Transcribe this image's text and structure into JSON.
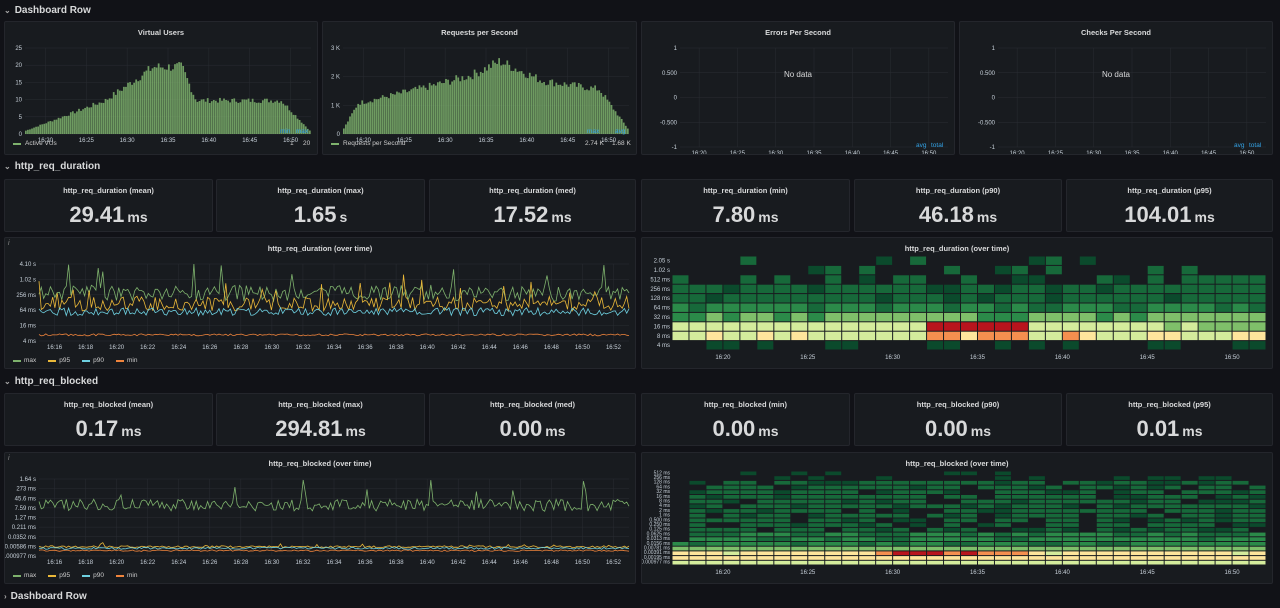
{
  "rows": {
    "dashboard_top": "Dashboard Row",
    "duration": "http_req_duration",
    "blocked": "http_req_blocked",
    "dashboard_bottom": "Dashboard Row"
  },
  "colors": {
    "green": "#7eb26d",
    "yellow": "#eab839",
    "cyan": "#6ed0e0",
    "orange": "#ef843c",
    "blue_header": "#33a2e5"
  },
  "time_ticks_top": [
    "16:20",
    "16:25",
    "16:30",
    "16:35",
    "16:40",
    "16:45",
    "16:50"
  ],
  "time_ticks_long": [
    "16:16",
    "16:18",
    "16:20",
    "16:22",
    "16:24",
    "16:26",
    "16:28",
    "16:30",
    "16:32",
    "16:34",
    "16:36",
    "16:38",
    "16:40",
    "16:42",
    "16:44",
    "16:46",
    "16:48",
    "16:50",
    "16:52"
  ],
  "heat_time_ticks": [
    "16:20",
    "16:25",
    "16:30",
    "16:35",
    "16:40",
    "16:45",
    "16:50"
  ],
  "vus": {
    "title": "Virtual Users",
    "y_ticks": [
      "25",
      "20",
      "15",
      "10",
      "5",
      "0"
    ],
    "legend_name": "Active VUs",
    "col_min": "min",
    "col_max": "max",
    "min": "1",
    "max": "20",
    "chart_data": {
      "type": "bar",
      "ylim": [
        0,
        25
      ],
      "profile": [
        [
          0,
          1
        ],
        [
          0.28,
          10
        ],
        [
          0.45,
          20
        ],
        [
          0.55,
          20
        ],
        [
          0.6,
          10
        ],
        [
          0.9,
          10
        ],
        [
          1,
          1
        ]
      ]
    }
  },
  "rps": {
    "title": "Requests per Second",
    "y_ticks": [
      "3 K",
      "2 K",
      "1 K",
      "0"
    ],
    "legend_name": "Requests per Second",
    "col_max": "max",
    "col_avg": "avg",
    "max": "2.74 K",
    "avg": "1.68 K",
    "chart_data": {
      "type": "bar",
      "ylim": [
        0,
        3000
      ],
      "profile": [
        [
          0,
          200
        ],
        [
          0.05,
          1100
        ],
        [
          0.3,
          1700
        ],
        [
          0.45,
          2100
        ],
        [
          0.55,
          2600
        ],
        [
          0.7,
          1900
        ],
        [
          0.9,
          1600
        ],
        [
          1,
          200
        ]
      ]
    }
  },
  "errors": {
    "title": "Errors Per Second",
    "nodata": "No data",
    "y_ticks": [
      "1",
      "0.500",
      "0",
      "-0.500",
      "-1"
    ],
    "col_avg": "avg",
    "col_total": "total"
  },
  "checks": {
    "title": "Checks Per Second",
    "nodata": "No data",
    "y_ticks": [
      "1",
      "0.500",
      "0",
      "-0.500",
      "-1"
    ],
    "col_avg": "avg",
    "col_total": "total"
  },
  "duration_stats": [
    {
      "title": "http_req_duration (mean)",
      "value": "29.41",
      "unit": "ms"
    },
    {
      "title": "http_req_duration (max)",
      "value": "1.65",
      "unit": "s"
    },
    {
      "title": "http_req_duration (med)",
      "value": "17.52",
      "unit": "ms"
    },
    {
      "title": "http_req_duration (min)",
      "value": "7.80",
      "unit": "ms"
    },
    {
      "title": "http_req_duration (p90)",
      "value": "46.18",
      "unit": "ms"
    },
    {
      "title": "http_req_duration (p95)",
      "value": "104.01",
      "unit": "ms"
    }
  ],
  "duration_series": {
    "title": "http_req_duration (over time)",
    "y_ticks": [
      "4.10 s",
      "1.02 s",
      "256 ms",
      "64 ms",
      "16 ms",
      "4 ms"
    ],
    "legend": [
      "max",
      "p95",
      "p90",
      "min"
    ],
    "chart_data": {
      "type": "line",
      "yscale": "log2",
      "ylim_ms": [
        4,
        4100
      ],
      "series": [
        {
          "name": "max",
          "level_ms": 200,
          "color": "#7eb26d"
        },
        {
          "name": "p95",
          "level_ms": 100,
          "color": "#eab839"
        },
        {
          "name": "p90",
          "level_ms": 45,
          "color": "#6ed0e0"
        },
        {
          "name": "min",
          "level_ms": 8,
          "color": "#ef843c"
        }
      ]
    }
  },
  "duration_heatmap": {
    "title": "http_req_duration (over time)",
    "y_ticks": [
      "2.05 s",
      "1.02 s",
      "512 ms",
      "256 ms",
      "128 ms",
      "64 ms",
      "32 ms",
      "16 ms",
      "8 ms",
      "4 ms"
    ],
    "chart_data": {
      "type": "heatmap",
      "columns": 35,
      "buckets": 10
    }
  },
  "blocked_stats": [
    {
      "title": "http_req_blocked (mean)",
      "value": "0.17",
      "unit": "ms"
    },
    {
      "title": "http_req_blocked (max)",
      "value": "294.81",
      "unit": "ms"
    },
    {
      "title": "http_req_blocked (med)",
      "value": "0.00",
      "unit": "ms"
    },
    {
      "title": "http_req_blocked (min)",
      "value": "0.00",
      "unit": "ms"
    },
    {
      "title": "http_req_blocked (p90)",
      "value": "0.00",
      "unit": "ms"
    },
    {
      "title": "http_req_blocked (p95)",
      "value": "0.01",
      "unit": "ms"
    }
  ],
  "blocked_series": {
    "title": "http_req_blocked (over time)",
    "y_ticks": [
      "1.64 s",
      "273 ms",
      "45.6 ms",
      "7.59 ms",
      "1.27 ms",
      "0.211 ms",
      "0.0352 ms",
      "0.00586 ms",
      "0.000977 ms"
    ],
    "legend": [
      "max",
      "p95",
      "p90",
      "min"
    ],
    "chart_data": {
      "type": "line",
      "yscale": "log6",
      "series": [
        {
          "name": "max",
          "level_ms": 30,
          "color": "#7eb26d"
        },
        {
          "name": "p95",
          "level_ms": 0.003,
          "color": "#eab839"
        },
        {
          "name": "p90",
          "level_ms": 0.002,
          "color": "#6ed0e0"
        },
        {
          "name": "min",
          "level_ms": 0.001,
          "color": "#ef843c"
        }
      ]
    }
  },
  "blocked_heatmap": {
    "title": "http_req_blocked (over time)",
    "y_ticks": [
      "512 ms",
      "256 ms",
      "128 ms",
      "64 ms",
      "32 ms",
      "16 ms",
      "8 ms",
      "4 ms",
      "2 ms",
      "1 ms",
      "0.500 ms",
      "0.250 ms",
      "0.125 ms",
      "0.0625 ms",
      "0.0313 ms",
      "0.0156 ms",
      "0.00781 ms",
      "0.00391 ms",
      "0.00195 ms",
      "0.000977 ms"
    ],
    "chart_data": {
      "type": "heatmap",
      "columns": 35,
      "buckets": 20
    }
  }
}
